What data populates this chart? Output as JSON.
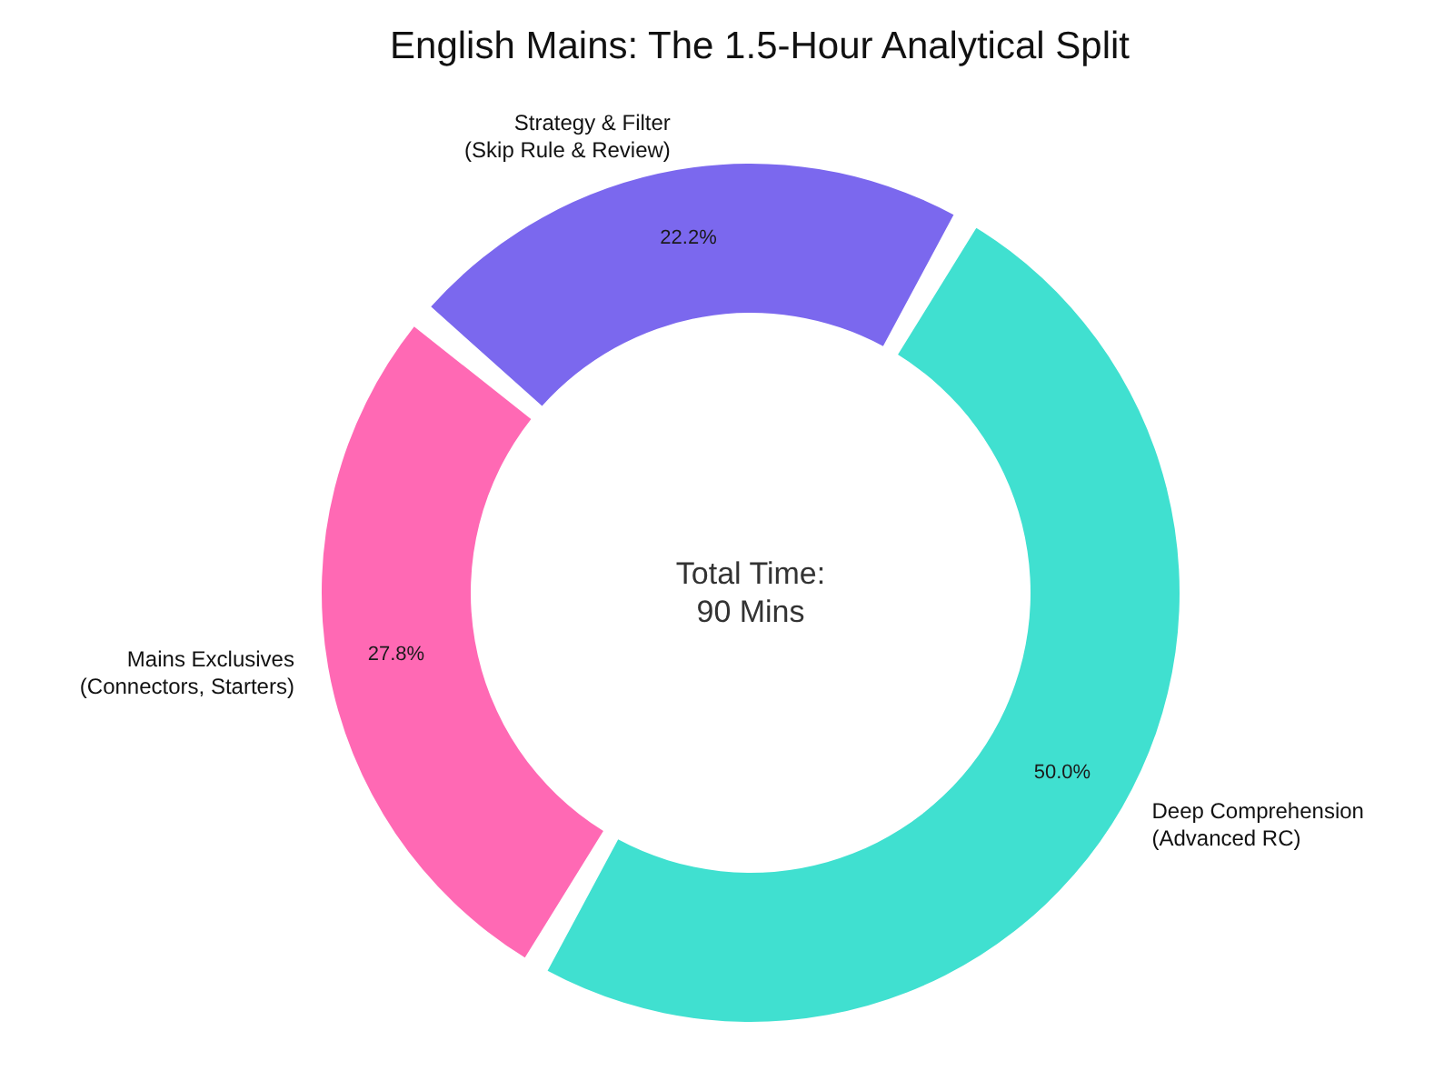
{
  "chart_data": {
    "type": "donut",
    "title": "English Mains: The 1.5-Hour Analytical Split",
    "categories": [
      "Deep Comprehension\n(Advanced RC)",
      "Mains Exclusives\n(Connectors, Starters)",
      "Strategy & Filter\n(Skip Rule & Review)"
    ],
    "values": [
      50.0,
      27.8,
      22.2
    ],
    "colors": [
      "#40e0d0",
      "#ff69b4",
      "#7b68ee"
    ],
    "value_labels": [
      "50.0%",
      "27.8%",
      "22.2%"
    ],
    "annotations": [
      "Total Time:\n90 Mins"
    ]
  }
}
